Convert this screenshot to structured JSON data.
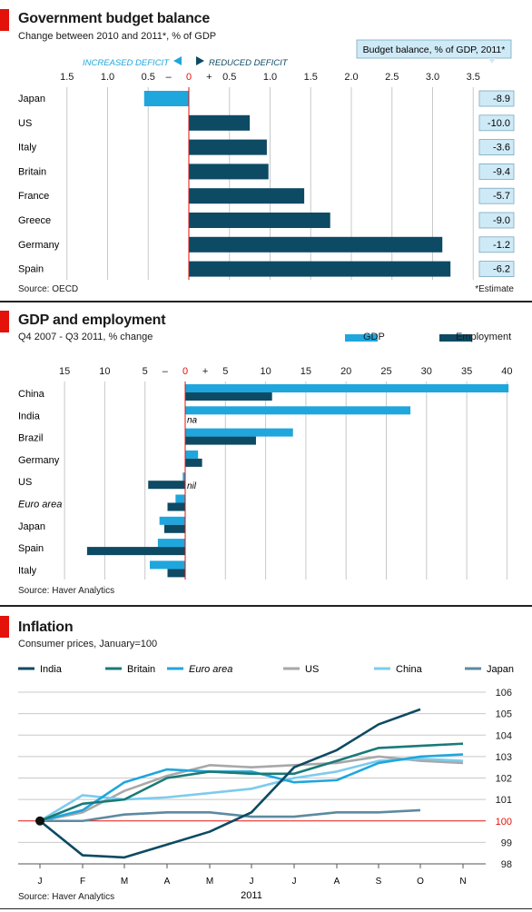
{
  "colors": {
    "red": "#e3120b",
    "dark_blue": "#0d4a63",
    "light_blue": "#1fa6dd",
    "badge_bg": "#cfeaf7",
    "grid": "#c8c8c8"
  },
  "chart_data": [
    {
      "type": "bar",
      "title": "Government budget balance",
      "subtitle": "Change between 2010 and 2011*, % of GDP",
      "annotation_left": "INCREASED DEFICIT",
      "annotation_right": "REDUCED DEFICIT",
      "xticks": [
        "1.5",
        "1.0",
        "0.5",
        "–",
        "0",
        "+",
        "0.5",
        "1.0",
        "1.5",
        "2.0",
        "2.5",
        "3.0",
        "3.5"
      ],
      "xlim": [
        -1.5,
        3.5
      ],
      "categories": [
        "Japan",
        "US",
        "Italy",
        "Britain",
        "France",
        "Greece",
        "Germany",
        "Spain"
      ],
      "values": [
        -0.55,
        0.75,
        0.96,
        0.98,
        1.42,
        1.74,
        3.12,
        3.22
      ],
      "side_header": "Budget balance, % of GDP, 2011*",
      "side_values": [
        "-8.9",
        "-10.0",
        "-3.6",
        "-9.4",
        "-5.7",
        "-9.0",
        "-1.2",
        "-6.2"
      ],
      "source": "Source: OECD",
      "footnote": "*Estimate"
    },
    {
      "type": "bar",
      "title": "GDP and employment",
      "subtitle": "Q4 2007 - Q3 2011, % change",
      "xticks": [
        "15",
        "10",
        "5",
        "–",
        "0",
        "+",
        "5",
        "10",
        "15",
        "20",
        "25",
        "30",
        "35",
        "40"
      ],
      "xlim": [
        -15,
        40
      ],
      "categories": [
        "China",
        "India",
        "Brazil",
        "Germany",
        "US",
        "Euro area",
        "Japan",
        "Spain",
        "Italy"
      ],
      "italic_categories": [
        "Euro area"
      ],
      "series": [
        {
          "name": "GDP",
          "values": [
            40.2,
            28,
            13.4,
            1.6,
            -0.3,
            -1.2,
            -3.2,
            -3.4,
            -4.4
          ]
        },
        {
          "name": "Employment",
          "values": [
            10.8,
            null,
            8.8,
            2.1,
            -4.6,
            -2.2,
            -2.6,
            -12.2,
            -2.2
          ]
        }
      ],
      "value_labels": {
        "India": "na",
        "US": "nil"
      },
      "source": "Source: Haver Analytics"
    },
    {
      "type": "line",
      "title": "Inflation",
      "subtitle": "Consumer prices, January=100",
      "categories": [
        "J",
        "F",
        "M",
        "A",
        "M",
        "J",
        "J",
        "A",
        "S",
        "O",
        "N"
      ],
      "xlabel": "2011",
      "ylim": [
        98,
        106
      ],
      "yticks": [
        "98",
        "99",
        "100",
        "101",
        "102",
        "103",
        "104",
        "105",
        "106"
      ],
      "series": [
        {
          "name": "India",
          "color": "#0d4a63",
          "values": [
            100,
            98.4,
            98.3,
            98.9,
            99.5,
            100.4,
            102.5,
            103.3,
            104.5,
            105.2,
            null
          ]
        },
        {
          "name": "Britain",
          "color": "#1a7a78",
          "values": [
            100,
            100.8,
            101.0,
            102.0,
            102.3,
            102.2,
            102.2,
            102.8,
            103.4,
            103.5,
            103.6
          ]
        },
        {
          "name": "Euro area",
          "color": "#1fa6dd",
          "italic": true,
          "values": [
            100,
            100.5,
            101.8,
            102.4,
            102.3,
            102.3,
            101.8,
            101.9,
            102.7,
            103.0,
            103.1
          ]
        },
        {
          "name": "US",
          "color": "#a8a8a8",
          "values": [
            100,
            100.4,
            101.4,
            102.1,
            102.6,
            102.5,
            102.6,
            102.7,
            103.0,
            102.8,
            102.7
          ]
        },
        {
          "name": "China",
          "color": "#7ccbee",
          "values": [
            100,
            101.2,
            101.0,
            101.1,
            101.3,
            101.5,
            102.0,
            102.3,
            102.8,
            102.9,
            102.8
          ]
        },
        {
          "name": "Japan",
          "color": "#5d8aa0",
          "values": [
            100,
            100.0,
            100.3,
            100.4,
            100.4,
            100.2,
            100.2,
            100.4,
            100.4,
            100.5,
            null
          ]
        }
      ],
      "source": "Source: Haver Analytics"
    }
  ]
}
